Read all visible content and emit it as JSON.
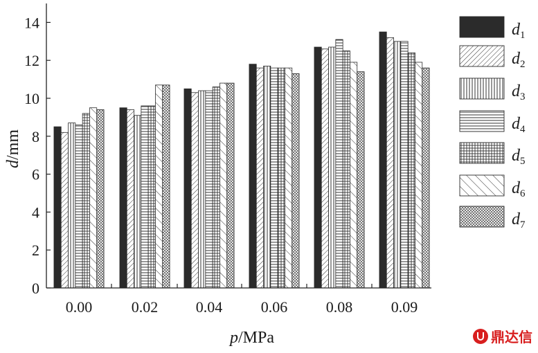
{
  "chart_data": {
    "type": "bar",
    "xlabel_italic": "p",
    "xlabel_unit": "/MPa",
    "ylabel_italic": "d",
    "ylabel_unit": "/mm",
    "categories": [
      "0.00",
      "0.02",
      "0.04",
      "0.06",
      "0.08",
      "0.09"
    ],
    "ylim": [
      0,
      15
    ],
    "yticks": [
      0,
      2,
      4,
      6,
      8,
      10,
      12,
      14
    ],
    "grid": false,
    "legend_position": "right",
    "series": [
      {
        "name": "d",
        "sub": "1",
        "pattern": "solid",
        "values": [
          8.5,
          9.5,
          10.5,
          11.8,
          12.7,
          13.5
        ]
      },
      {
        "name": "d",
        "sub": "2",
        "pattern": "diag-fine",
        "values": [
          8.2,
          9.4,
          10.3,
          11.6,
          12.6,
          13.2
        ]
      },
      {
        "name": "d",
        "sub": "3",
        "pattern": "vertical",
        "values": [
          8.7,
          9.1,
          10.4,
          11.7,
          12.7,
          13.0
        ]
      },
      {
        "name": "d",
        "sub": "4",
        "pattern": "horizontal",
        "values": [
          8.6,
          9.6,
          10.4,
          11.6,
          13.1,
          13.0
        ]
      },
      {
        "name": "d",
        "sub": "5",
        "pattern": "grid",
        "values": [
          9.2,
          9.6,
          10.6,
          11.6,
          12.5,
          12.4
        ]
      },
      {
        "name": "d",
        "sub": "6",
        "pattern": "diag-wide",
        "values": [
          9.5,
          10.7,
          10.8,
          11.6,
          11.9,
          11.9
        ]
      },
      {
        "name": "d",
        "sub": "7",
        "pattern": "crosshatch",
        "values": [
          9.4,
          10.7,
          10.8,
          11.3,
          11.4,
          11.6
        ]
      }
    ]
  },
  "watermark": {
    "text": "鼎达信"
  }
}
